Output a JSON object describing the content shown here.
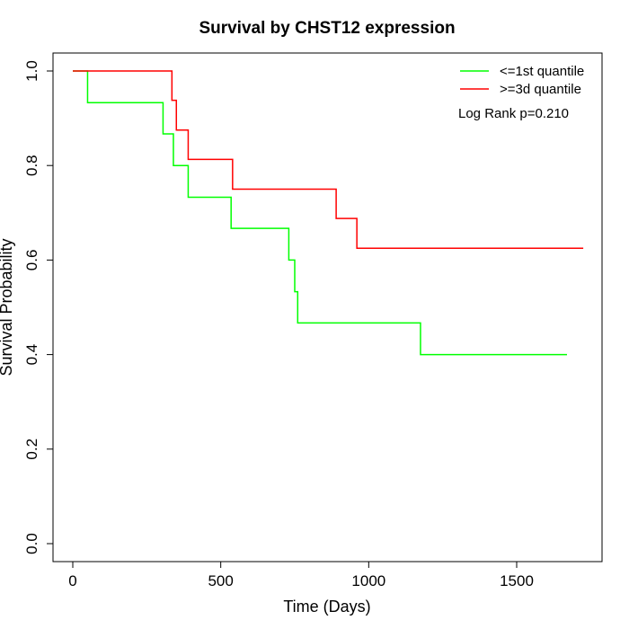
{
  "chart_data": {
    "type": "line",
    "title": "Survival by CHST12 expression",
    "xlabel": "Time (Days)",
    "ylabel": "Survival Probability",
    "xlim": [
      0,
      1750
    ],
    "ylim": [
      0,
      1
    ],
    "x_ticks": [
      0,
      500,
      1000,
      1500
    ],
    "y_ticks": [
      0.0,
      0.2,
      0.4,
      0.6,
      0.8,
      1.0
    ],
    "x_tick_labels": [
      "0",
      "500",
      "1000",
      "1500"
    ],
    "y_tick_labels": [
      "0.0",
      "0.2",
      "0.4",
      "0.6",
      "0.8",
      "1.0"
    ],
    "grid": false,
    "legend_position": "top-right",
    "annotation": "Log Rank p=0.210",
    "series": [
      {
        "name": "<=1st quantile",
        "color": "#00ff00",
        "step": true,
        "x": [
          0,
          50,
          305,
          340,
          390,
          535,
          730,
          750,
          760,
          1175,
          1670
        ],
        "y": [
          1.0,
          0.933,
          0.867,
          0.8,
          0.733,
          0.667,
          0.6,
          0.533,
          0.467,
          0.4,
          0.4
        ]
      },
      {
        "name": ">=3d quantile",
        "color": "#ff0000",
        "step": true,
        "x": [
          0,
          335,
          350,
          390,
          540,
          890,
          960,
          1725
        ],
        "y": [
          1.0,
          0.938,
          0.875,
          0.813,
          0.75,
          0.688,
          0.625,
          0.625
        ]
      }
    ]
  }
}
